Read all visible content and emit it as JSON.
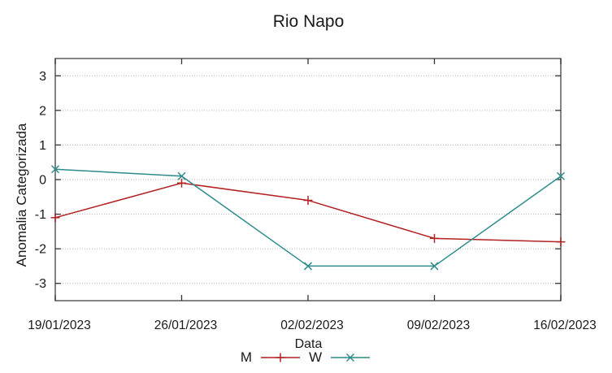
{
  "page": {
    "background": "#ffffff"
  },
  "chart_data": {
    "type": "line",
    "title": "Rio Napo",
    "xlabel": "Data",
    "ylabel": "Anomalia Categorizada",
    "categories": [
      "19/01/2023",
      "26/01/2023",
      "02/02/2023",
      "09/02/2023",
      "16/02/2023"
    ],
    "series": [
      {
        "name": "M",
        "marker": "plus",
        "color": "#b22222",
        "values": [
          -1.1,
          -0.1,
          -0.6,
          -1.7,
          -1.8
        ]
      },
      {
        "name": "W",
        "marker": "cross",
        "color": "#2e8b8b",
        "values": [
          0.3,
          0.1,
          -2.5,
          -2.5,
          0.1
        ]
      }
    ],
    "ytick_labels": [
      "-3",
      "-2",
      "-1",
      "0",
      "1",
      "2",
      "3"
    ],
    "ytick_values": [
      -3,
      -2,
      -1,
      0,
      1,
      2,
      3
    ],
    "ylim": [
      -3.5,
      3.5
    ],
    "grid": {
      "horizontal": true,
      "vertical": false,
      "style": "dotted",
      "color": "#b3b3b3"
    },
    "legend_position": "below-xlabel",
    "axis_border_color": "#5a5a5a",
    "tick_color": "#333333",
    "text_color": "#1a1a1a"
  }
}
